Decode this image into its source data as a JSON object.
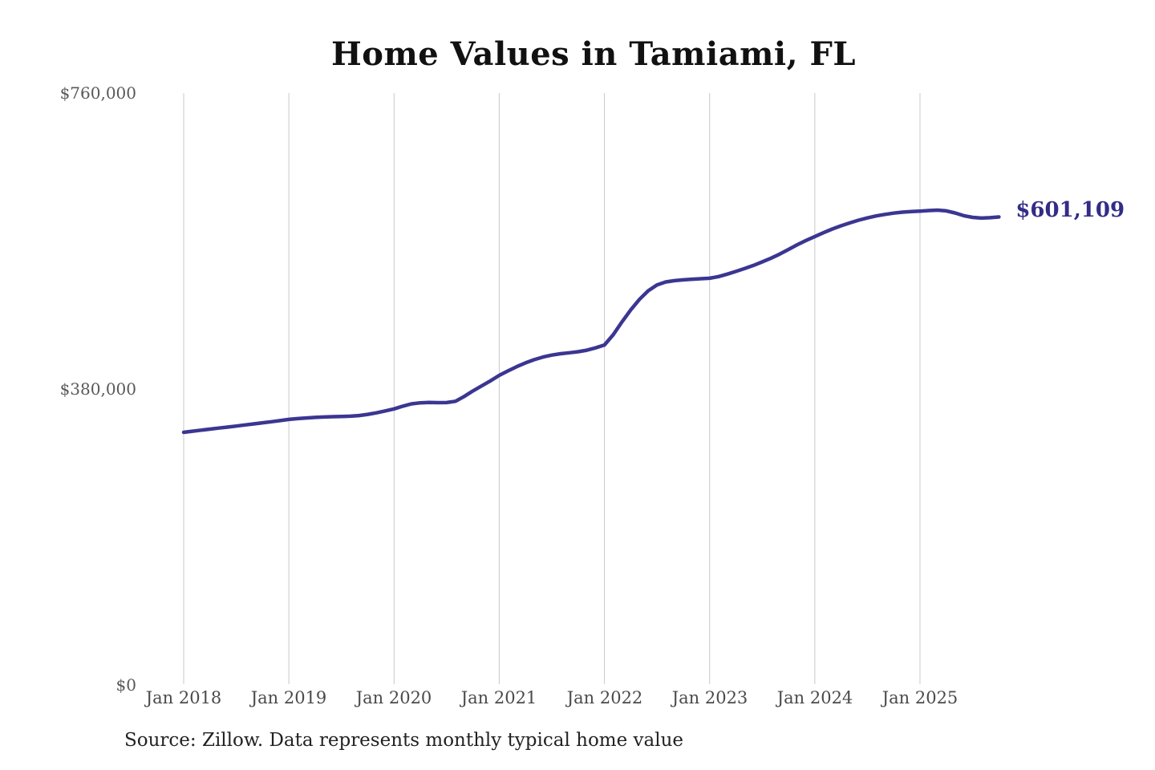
{
  "title": "Home Values in Tamiami, FL",
  "source_note": "Source: Zillow. Data represents monthly typical home value",
  "end_label": "$601,109",
  "colors": {
    "line": "#3b3692",
    "end_label": "#322c87",
    "gridline": "#c9c9c9",
    "y_axis_label": "#595959",
    "x_axis_label": "#4a4a4a",
    "title": "#111111",
    "source": "#222222",
    "background": "#ffffff"
  },
  "chart_data": {
    "type": "line",
    "title": "Home Values in Tamiami, FL",
    "xlabel": "",
    "ylabel": "",
    "ylim": [
      0,
      760000
    ],
    "grid": "vertical-only",
    "legend": "none",
    "y_ticks": [
      {
        "label": "$0",
        "value": 0
      },
      {
        "label": "$380,000",
        "value": 380000
      },
      {
        "label": "$760,000",
        "value": 760000
      }
    ],
    "x_ticks": [
      {
        "label": "Jan 2018",
        "month_index": 0
      },
      {
        "label": "Jan 2019",
        "month_index": 12
      },
      {
        "label": "Jan 2020",
        "month_index": 24
      },
      {
        "label": "Jan 2021",
        "month_index": 36
      },
      {
        "label": "Jan 2022",
        "month_index": 48
      },
      {
        "label": "Jan 2023",
        "month_index": 60
      },
      {
        "label": "Jan 2024",
        "month_index": 72
      },
      {
        "label": "Jan 2025",
        "month_index": 84
      }
    ],
    "series": [
      {
        "name": "Monthly typical home value",
        "start_month": "2018-01",
        "frequency": "monthly",
        "final_value": 601109,
        "final_value_label": "$601,109",
        "values": [
          325000,
          326400,
          327800,
          329100,
          330400,
          331700,
          333000,
          334400,
          335800,
          337200,
          338600,
          340000,
          341500,
          342600,
          343400,
          344100,
          344600,
          345000,
          345300,
          345700,
          346500,
          348000,
          350000,
          352400,
          355000,
          358500,
          361500,
          362800,
          363200,
          363000,
          363100,
          364800,
          371000,
          378000,
          384500,
          391000,
          398000,
          403800,
          409200,
          414000,
          418200,
          421500,
          424000,
          425800,
          427000,
          428300,
          430300,
          433300,
          437000,
          450000,
          466500,
          482000,
          495500,
          506500,
          514000,
          517800,
          519500,
          520500,
          521300,
          521900,
          522500,
          524600,
          527800,
          531300,
          535000,
          539000,
          543500,
          548200,
          553500,
          559500,
          565500,
          571000,
          576000,
          581000,
          585700,
          589800,
          593500,
          597000,
          599900,
          602400,
          604400,
          606000,
          607300,
          608100,
          608600,
          609300,
          609800,
          608900,
          606300,
          602800,
          600600,
          599700,
          600200,
          601109
        ]
      }
    ]
  }
}
